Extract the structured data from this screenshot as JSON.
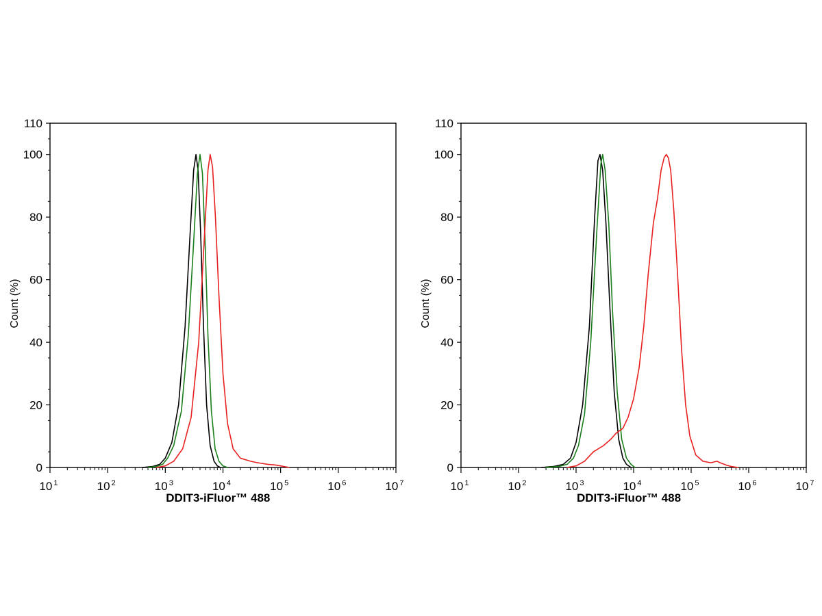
{
  "chart_data": [
    {
      "type": "line",
      "panel": "left",
      "title": "",
      "xlabel": "DDIT3-iFluor™ 488",
      "ylabel": "Count  (%)",
      "x_scale": "log",
      "xlim": [
        10,
        10000000
      ],
      "ylim": [
        0,
        110
      ],
      "y_ticks": [
        0,
        20,
        40,
        60,
        80,
        100,
        110
      ],
      "x_ticks": [
        {
          "base": "10",
          "exp": "1"
        },
        {
          "base": "10",
          "exp": "2"
        },
        {
          "base": "10",
          "exp": "3"
        },
        {
          "base": "10",
          "exp": "4"
        },
        {
          "base": "10",
          "exp": "5"
        },
        {
          "base": "10",
          "exp": "6"
        },
        {
          "base": "10",
          "exp": "7"
        }
      ],
      "grid": false,
      "legend": "none",
      "series": [
        {
          "color": "#000000",
          "x": [
            400,
            600,
            800,
            1000,
            1300,
            1700,
            2200,
            2700,
            3100,
            3400,
            3700,
            4100,
            4600,
            5200,
            6000,
            7000,
            8000,
            9000
          ],
          "y": [
            0,
            0.3,
            1,
            3,
            8,
            20,
            45,
            75,
            95,
            100,
            95,
            75,
            45,
            20,
            7,
            2,
            0.5,
            0
          ]
        },
        {
          "color": "#1a7f1a",
          "x": [
            500,
            700,
            900,
            1100,
            1400,
            1900,
            2500,
            3100,
            3600,
            4000,
            4400,
            4900,
            5500,
            6300,
            7300,
            8500,
            10000,
            12000
          ],
          "y": [
            0,
            0.3,
            1,
            3,
            7,
            18,
            42,
            72,
            94,
            100,
            94,
            72,
            42,
            18,
            6,
            2,
            0.5,
            0
          ]
        },
        {
          "color": "#e8201f",
          "x": [
            700,
            1000,
            1400,
            2000,
            2800,
            3800,
            4800,
            5500,
            6000,
            6600,
            7400,
            8500,
            10000,
            12000,
            15000,
            20000,
            30000,
            40000,
            60000,
            80000,
            100000,
            140000
          ],
          "y": [
            0,
            0.5,
            2,
            6,
            16,
            40,
            75,
            95,
            100,
            96,
            80,
            55,
            30,
            14,
            6,
            3,
            2,
            1.5,
            1,
            0.8,
            0.5,
            0
          ]
        }
      ]
    },
    {
      "type": "line",
      "panel": "right",
      "title": "",
      "xlabel": "DDIT3-iFluor™ 488",
      "ylabel": "Count  (%)",
      "x_scale": "log",
      "xlim": [
        10,
        10000000
      ],
      "ylim": [
        0,
        110
      ],
      "y_ticks": [
        0,
        20,
        40,
        60,
        80,
        100,
        110
      ],
      "x_ticks": [
        {
          "base": "10",
          "exp": "1"
        },
        {
          "base": "10",
          "exp": "2"
        },
        {
          "base": "10",
          "exp": "3"
        },
        {
          "base": "10",
          "exp": "4"
        },
        {
          "base": "10",
          "exp": "5"
        },
        {
          "base": "10",
          "exp": "6"
        },
        {
          "base": "10",
          "exp": "7"
        }
      ],
      "grid": false,
      "legend": "none",
      "series": [
        {
          "color": "#000000",
          "x": [
            250,
            400,
            600,
            800,
            1000,
            1300,
            1700,
            2100,
            2400,
            2600,
            2900,
            3300,
            3900,
            4600,
            5500,
            6500,
            7500,
            9000
          ],
          "y": [
            0,
            0.3,
            1,
            3,
            8,
            20,
            45,
            80,
            98,
            100,
            95,
            78,
            50,
            24,
            9,
            3,
            1,
            0
          ]
        },
        {
          "color": "#1a7f1a",
          "x": [
            300,
            500,
            700,
            900,
            1100,
            1400,
            1800,
            2300,
            2700,
            2900,
            3200,
            3700,
            4300,
            5200,
            6200,
            7500,
            9000,
            10500
          ],
          "y": [
            0,
            0.3,
            1,
            3,
            7,
            17,
            40,
            76,
            97,
            100,
            95,
            78,
            50,
            24,
            9,
            3,
            1,
            0
          ]
        },
        {
          "color": "#e8201f",
          "x": [
            700,
            1000,
            1400,
            2000,
            3000,
            4000,
            5000,
            6500,
            8000,
            10000,
            12500,
            15000,
            18000,
            22000,
            26000,
            30000,
            34000,
            37000,
            40000,
            44000,
            50000,
            58000,
            68000,
            80000,
            95000,
            120000,
            160000,
            220000,
            280000,
            320000,
            400000,
            500000,
            650000
          ],
          "y": [
            0,
            0.5,
            2,
            5,
            7,
            9,
            11,
            12.5,
            16,
            22,
            32,
            45,
            62,
            78,
            86,
            95,
            99,
            100,
            99,
            95,
            82,
            62,
            38,
            20,
            10,
            4,
            2,
            1.5,
            2,
            1.5,
            0.8,
            0.3,
            0
          ]
        }
      ]
    }
  ]
}
